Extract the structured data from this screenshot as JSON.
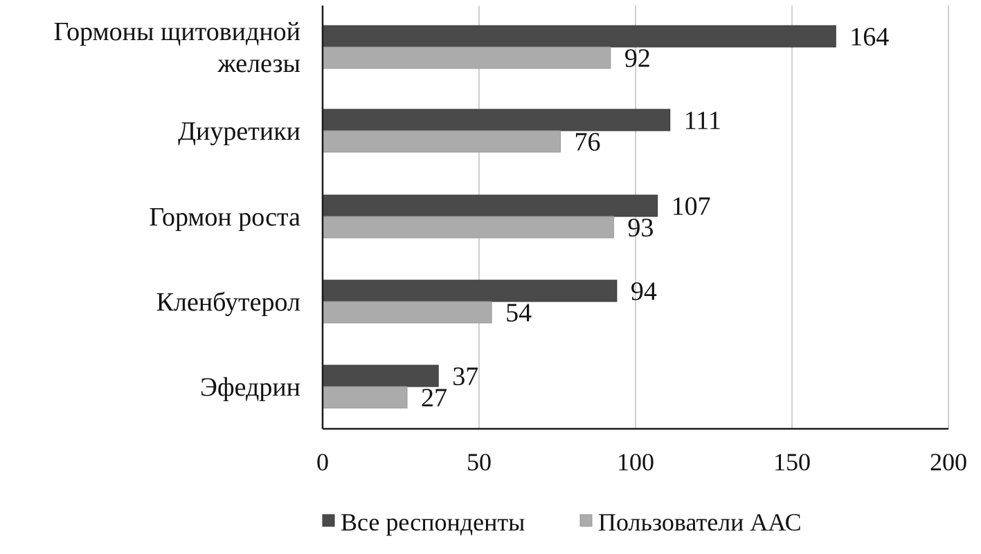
{
  "chart_data": {
    "type": "bar",
    "orientation": "horizontal",
    "title": "",
    "xlabel": "",
    "ylabel": "",
    "categories": [
      [
        "Гормоны щитовидной",
        "железы"
      ],
      [
        "Диуретики"
      ],
      [
        "Гормон роста"
      ],
      [
        "Кленбутерол"
      ],
      [
        "Эфедрин"
      ]
    ],
    "series": [
      {
        "name": "Все респонденты",
        "color": "#4a4a4a",
        "values": [
          164,
          111,
          107,
          94,
          37
        ]
      },
      {
        "name": "Пользователи ААС",
        "color": "#ababab",
        "values": [
          92,
          76,
          93,
          54,
          27
        ]
      }
    ],
    "xlim": [
      0,
      200
    ],
    "xticks": [
      0,
      50,
      100,
      150,
      200
    ],
    "grid": "vertical",
    "legend_position": "bottom",
    "data_labels": true
  }
}
